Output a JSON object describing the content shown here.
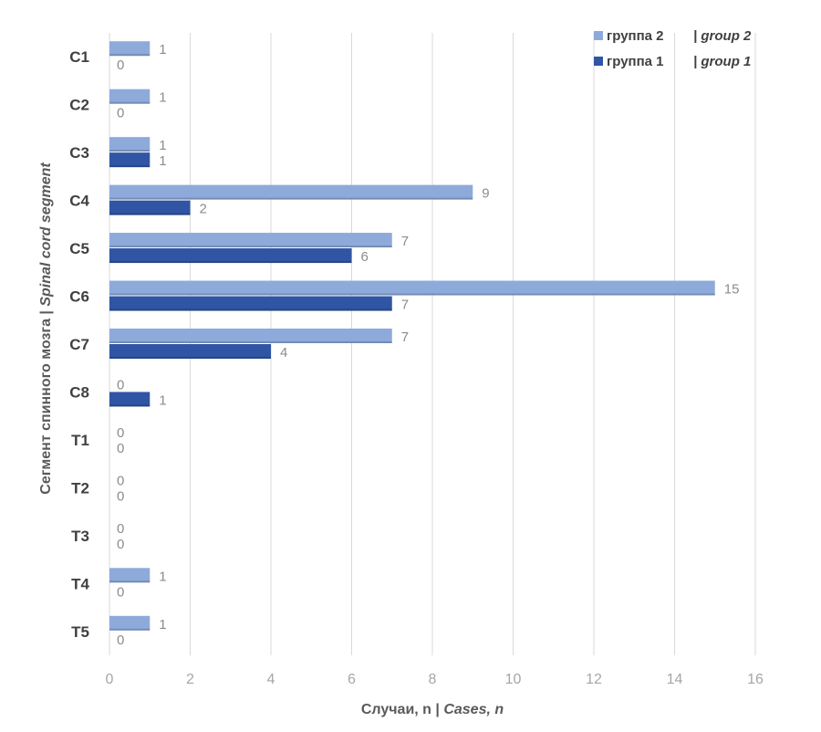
{
  "chart_data": {
    "type": "bar",
    "orientation": "horizontal",
    "categories": [
      "C1",
      "C2",
      "C3",
      "C4",
      "C5",
      "C6",
      "C7",
      "C8",
      "T1",
      "T2",
      "T3",
      "T4",
      "T5"
    ],
    "series": [
      {
        "name": "группа 2",
        "name_en": "group 2",
        "color": "#8eaadb",
        "values": [
          1,
          1,
          1,
          9,
          7,
          15,
          7,
          0,
          0,
          0,
          0,
          1,
          1
        ]
      },
      {
        "name": "группа 1",
        "name_en": "group 1",
        "color": "#2f55a4",
        "values": [
          0,
          0,
          1,
          2,
          6,
          7,
          4,
          1,
          0,
          0,
          0,
          0,
          0
        ]
      }
    ],
    "xlabel": "Случаи, n",
    "xlabel_en": "Cases, n",
    "ylabel": "Сегмент спинного мозга",
    "ylabel_en": "Spinal cord segment",
    "xlim": [
      0,
      16
    ],
    "xticks": [
      0,
      2,
      4,
      6,
      8,
      10,
      12,
      14,
      16
    ],
    "grid": "vertical",
    "legend_position": "top-right",
    "data_labels": true,
    "label_separator": " | "
  }
}
